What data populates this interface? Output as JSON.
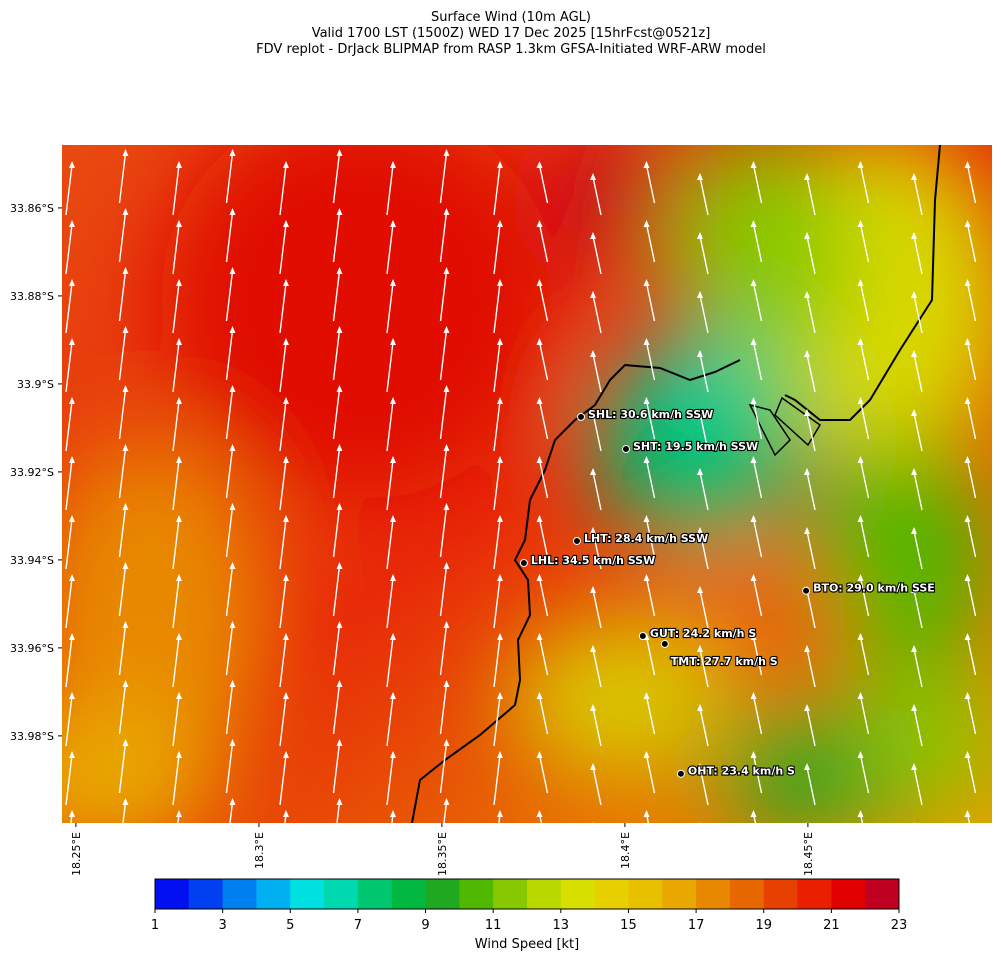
{
  "title_lines": [
    "Surface Wind (10m AGL)",
    "Valid 1700 LST (1500Z) WED 17 Dec 2025 [15hrFcst@0521z]",
    "FDV replot - DrJack BLIPMAP from RASP 1.3km GFSA-Initiated WRF-ARW model"
  ],
  "map": {
    "lonlim": [
      18.2462,
      18.5003
    ],
    "latlim": [
      -33.9998,
      -33.8457
    ],
    "lat_ticks": [
      {
        "value": -33.86,
        "label": "33.86°S"
      },
      {
        "value": -33.88,
        "label": "33.88°S"
      },
      {
        "value": -33.9,
        "label": "33.9°S"
      },
      {
        "value": -33.92,
        "label": "33.92°S"
      },
      {
        "value": -33.94,
        "label": "33.94°S"
      },
      {
        "value": -33.96,
        "label": "33.96°S"
      },
      {
        "value": -33.98,
        "label": "33.98°S"
      }
    ],
    "lon_ticks": [
      {
        "value": 18.25,
        "label": "18.25°E"
      },
      {
        "value": 18.3,
        "label": "18.3°E"
      },
      {
        "value": 18.35,
        "label": "18.35°E"
      },
      {
        "value": 18.4,
        "label": "18.4°E"
      },
      {
        "value": 18.45,
        "label": "18.45°E"
      }
    ],
    "stations": [
      {
        "lon": 18.388,
        "lat": -33.9075,
        "label": "SHL: 30.6 km/h SSW"
      },
      {
        "lon": 18.4003,
        "lat": -33.9148,
        "label": "SHT: 19.5 km/h SSW"
      },
      {
        "lon": 18.3869,
        "lat": -33.9357,
        "label": "LHT: 28.4 km/h SSW"
      },
      {
        "lon": 18.3724,
        "lat": -33.9407,
        "label": "LHL: 34.5 km/h SSW"
      },
      {
        "lon": 18.4495,
        "lat": -33.947,
        "label": "BTO: 29.0 km/h SSE"
      },
      {
        "lon": 18.4049,
        "lat": -33.9573,
        "label": "GUT: 24.2 km/h S"
      },
      {
        "lon": 18.4109,
        "lat": -33.9591,
        "label": "TMT: 27.7 km/h S"
      },
      {
        "lon": 18.4153,
        "lat": -33.9886,
        "label": "OHT: 23.4 km/h S"
      }
    ]
  },
  "colorbar": {
    "label": "Wind Speed [kt]",
    "lim": [
      1,
      23
    ],
    "ticks": [
      1,
      3,
      5,
      7,
      9,
      11,
      13,
      15,
      17,
      19,
      21,
      23
    ],
    "colors": [
      "#0010f0",
      "#0040f0",
      "#0080f0",
      "#00b0f0",
      "#00e0e0",
      "#00d8b0",
      "#00c870",
      "#00b840",
      "#20a820",
      "#50b800",
      "#88c800",
      "#b8d800",
      "#d8e000",
      "#e8d000",
      "#e8c000",
      "#e8a800",
      "#e88800",
      "#e86800",
      "#e84000",
      "#e82000",
      "#e00000",
      "#c00020"
    ]
  }
}
